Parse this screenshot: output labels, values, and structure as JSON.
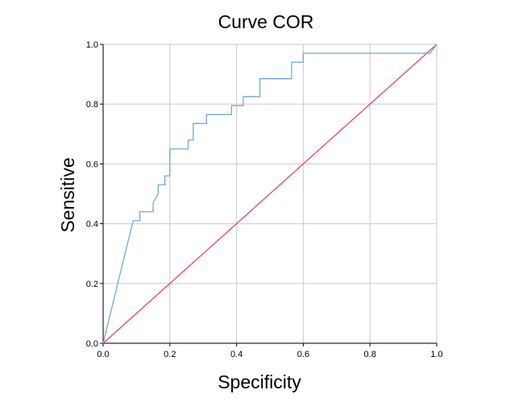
{
  "chart_data": {
    "type": "line",
    "title": "Curve COR",
    "xlabel": "Specificity",
    "ylabel": "Sensitive",
    "xlim": [
      0,
      1
    ],
    "ylim": [
      0,
      1
    ],
    "grid": true,
    "x_ticks": [
      0.0,
      0.2,
      0.4,
      0.6,
      0.8,
      1.0
    ],
    "y_ticks": [
      0.0,
      0.2,
      0.4,
      0.6,
      0.8,
      1.0
    ],
    "x_tick_labels": [
      "0.0",
      "0.2",
      "0.4",
      "0.6",
      "0.8",
      "1.0"
    ],
    "y_tick_labels": [
      "0.0",
      "0.2",
      "0.4",
      "0.6",
      "0.8",
      "1.0"
    ],
    "series": [
      {
        "name": "ROC curve",
        "color": "#6fa8dc",
        "x": [
          0.0,
          0.09,
          0.11,
          0.11,
          0.15,
          0.15,
          0.165,
          0.165,
          0.185,
          0.185,
          0.2,
          0.2,
          0.255,
          0.255,
          0.27,
          0.27,
          0.31,
          0.31,
          0.385,
          0.385,
          0.42,
          0.42,
          0.47,
          0.47,
          0.565,
          0.565,
          0.6,
          0.6,
          0.98,
          1.0
        ],
        "y": [
          0.0,
          0.41,
          0.41,
          0.44,
          0.44,
          0.47,
          0.5,
          0.53,
          0.53,
          0.56,
          0.56,
          0.65,
          0.65,
          0.68,
          0.68,
          0.735,
          0.735,
          0.765,
          0.765,
          0.795,
          0.795,
          0.825,
          0.825,
          0.885,
          0.885,
          0.94,
          0.94,
          0.97,
          0.97,
          1.0
        ]
      },
      {
        "name": "Reference line",
        "color": "#e2456b",
        "x": [
          0.0,
          1.0
        ],
        "y": [
          0.0,
          1.0
        ]
      }
    ]
  }
}
